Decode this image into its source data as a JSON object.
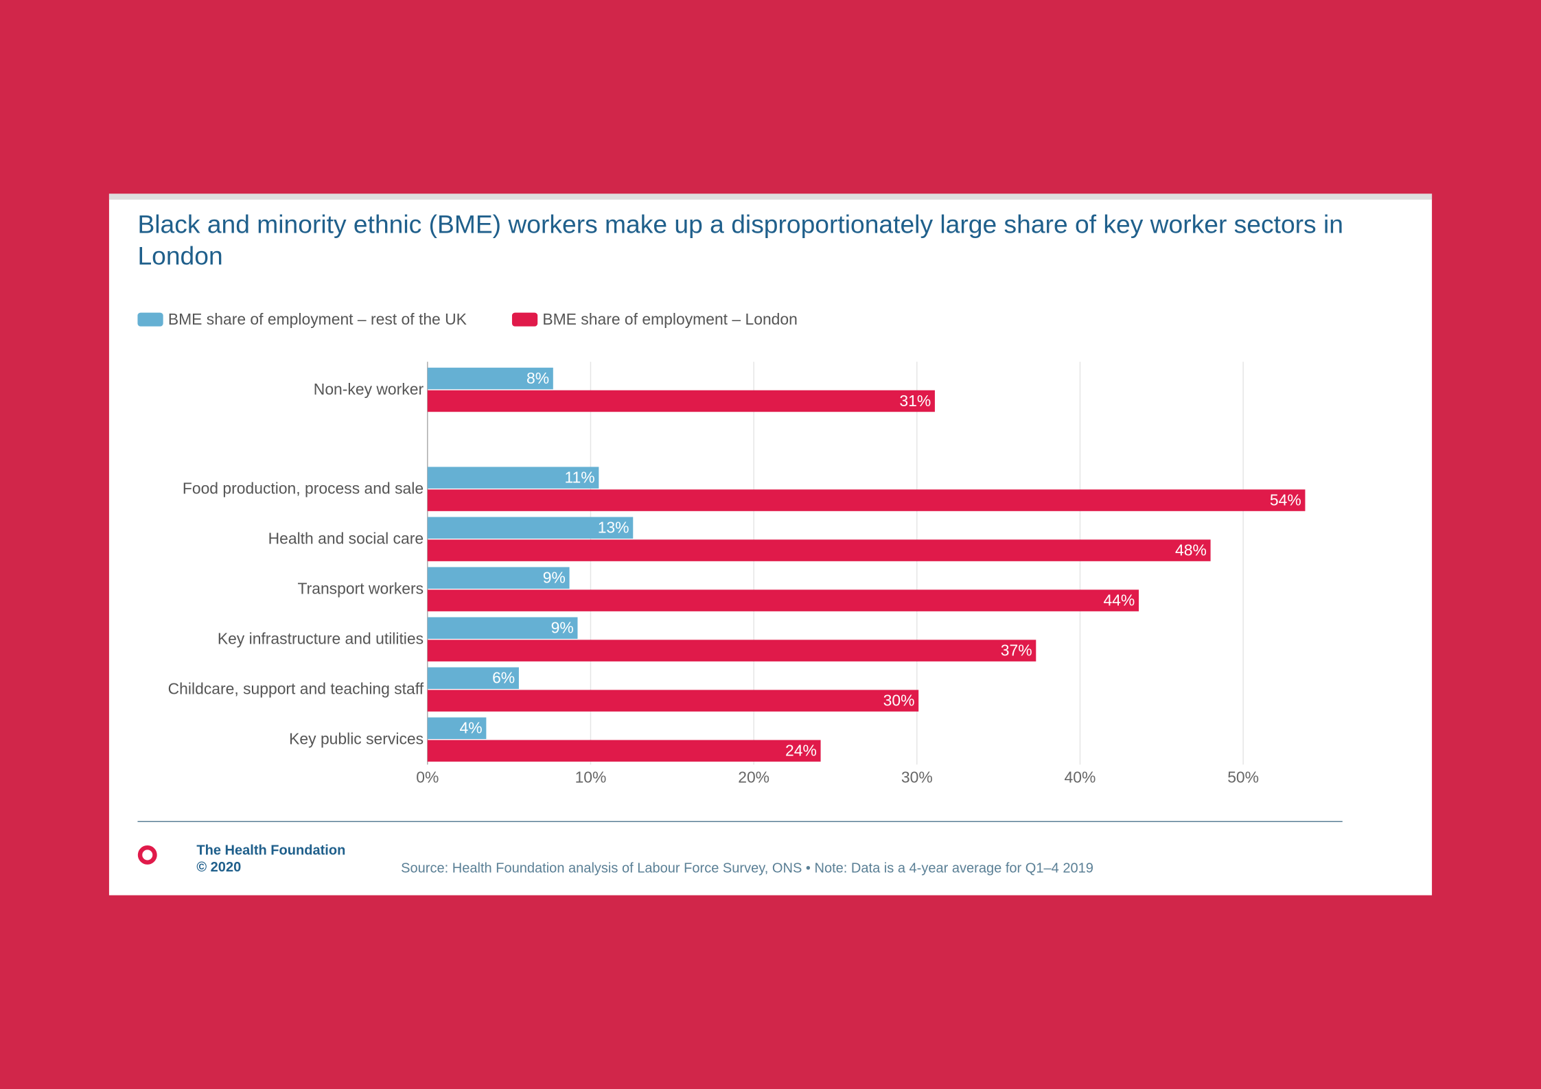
{
  "chart_data": {
    "type": "bar",
    "orientation": "horizontal",
    "title": "Black and minority ethnic (BME) workers make up a disproportionately large share of key worker sectors in London",
    "categories": [
      "Non-key worker",
      "Food production, process and sale",
      "Health and social care",
      "Transport workers",
      "Key infrastructure and utilities",
      "Childcare, support and teaching staff",
      "Key public services"
    ],
    "series": [
      {
        "name": "BME share of employment – rest of the UK",
        "color": "#65b0d3",
        "values": [
          7.7,
          10.5,
          12.6,
          8.7,
          9.2,
          5.6,
          3.6
        ],
        "value_labels": [
          "8%",
          "11%",
          "13%",
          "9%",
          "9%",
          "6%",
          "4%"
        ]
      },
      {
        "name": "BME share of employment – London",
        "color": "#e01a4a",
        "values": [
          31.1,
          53.8,
          48.0,
          43.6,
          37.3,
          30.1,
          24.1
        ],
        "value_labels": [
          "31%",
          "54%",
          "48%",
          "44%",
          "37%",
          "30%",
          "24%"
        ]
      }
    ],
    "xlim": [
      0,
      54.9
    ],
    "xticks": [
      {
        "value": 0,
        "label": "0%"
      },
      {
        "value": 10,
        "label": "10%"
      },
      {
        "value": 20,
        "label": "20%"
      },
      {
        "value": 30,
        "label": "30%"
      },
      {
        "value": 40,
        "label": "40%"
      },
      {
        "value": 50,
        "label": "50%"
      }
    ],
    "grid": true,
    "legend": "top-left"
  },
  "footer": {
    "brand": "The Health Foundation",
    "copyright": "© 2020",
    "source": "Source: Health Foundation analysis of Labour Force Survey, ONS • Note: Data is a 4-year average for Q1–4 2019"
  }
}
